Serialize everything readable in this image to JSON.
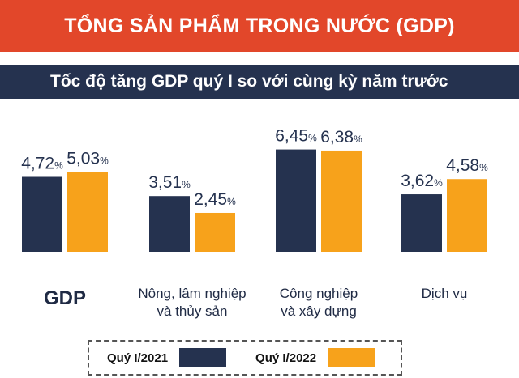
{
  "header": {
    "title": "TỔNG SẢN PHẨM TRONG NƯỚC (GDP)",
    "subtitle": "Tốc độ tăng GDP quý I so với cùng kỳ năm trước"
  },
  "colors": {
    "banner": "#e2472a",
    "subbanner": "#25324f",
    "series_2021": "#25324f",
    "series_2022": "#f7a21b"
  },
  "legend": {
    "item_2021": "Quý I/2021",
    "item_2022": "Quý I/2022"
  },
  "chart_data": {
    "type": "bar",
    "title": "Tốc độ tăng GDP quý I so với cùng kỳ năm trước",
    "unit": "%",
    "categories": [
      [
        "GDP"
      ],
      [
        "Nông, lâm nghiệp",
        "và thủy sản"
      ],
      [
        "Công nghiệp",
        "và xây dựng"
      ],
      [
        "Dịch vụ"
      ]
    ],
    "series": [
      {
        "name": "Quý I/2021",
        "values": [
          4.72,
          3.51,
          6.45,
          3.62
        ],
        "labels": [
          "4,72",
          "3,51",
          "6,45",
          "3,62"
        ]
      },
      {
        "name": "Quý I/2022",
        "values": [
          5.03,
          2.45,
          6.38,
          4.58
        ],
        "labels": [
          "5,03",
          "2,45",
          "6,38",
          "4,58"
        ]
      }
    ],
    "legend_position": "bottom",
    "grid": false
  }
}
